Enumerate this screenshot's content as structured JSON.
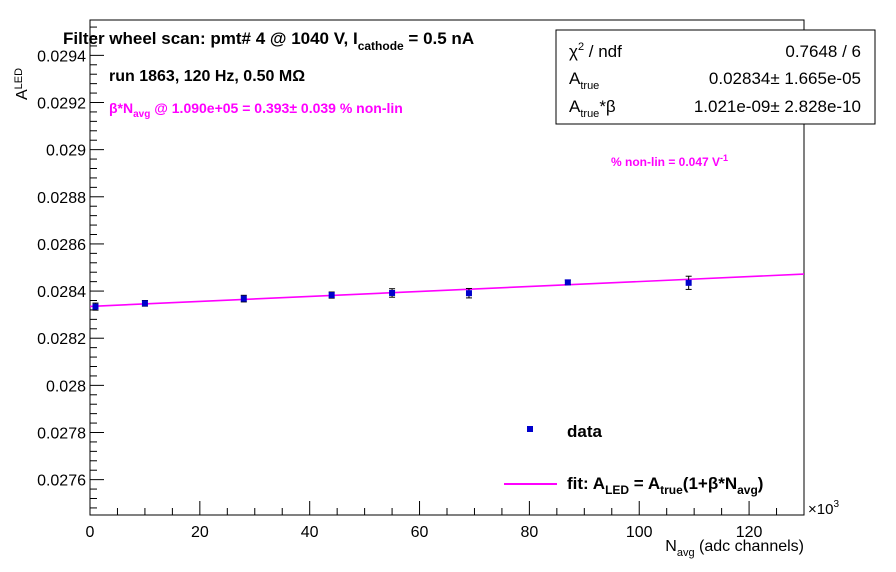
{
  "chart_data": {
    "type": "scatter",
    "title": {
      "prefix": "Filter wheel scan: pmt#   4 @  1040 V, I",
      "sub": "cathode",
      "suffix": " = 0.5 nA"
    },
    "xlabel": {
      "main": "N",
      "sub": "avg",
      "rest": " (adc channels)"
    },
    "ylabel": {
      "main": "A",
      "sub": "LED"
    },
    "x_multiplier": "×10",
    "x_multiplier_exp": "3",
    "xlim": [
      0,
      130
    ],
    "ylim": [
      0.02745,
      0.02955
    ],
    "x_ticks": [
      0,
      20,
      40,
      60,
      80,
      100,
      120
    ],
    "x_tick_labels": [
      "0",
      "20",
      "40",
      "60",
      "80",
      "100",
      "120"
    ],
    "y_ticks": [
      0.0276,
      0.0278,
      0.028,
      0.0282,
      0.0284,
      0.0286,
      0.0288,
      0.029,
      0.0292,
      0.0294
    ],
    "y_tick_labels": [
      "0.0276",
      "0.0278",
      "0.028",
      "0.0282",
      "0.0284",
      "0.0286",
      "0.0288",
      "0.029",
      "0.0292",
      "0.0294"
    ],
    "series": [
      {
        "name": "data",
        "points": [
          {
            "x": 1.0,
            "y": 0.028334,
            "err": 1.5e-05
          },
          {
            "x": 10.0,
            "y": 0.028348,
            "err": 1.2e-05
          },
          {
            "x": 28.0,
            "y": 0.028368,
            "err": 1.4e-05
          },
          {
            "x": 44.0,
            "y": 0.028383,
            "err": 1.3e-05
          },
          {
            "x": 55.0,
            "y": 0.028392,
            "err": 1.8e-05
          },
          {
            "x": 69.0,
            "y": 0.028391,
            "err": 2e-05
          },
          {
            "x": 87.0,
            "y": 0.028437,
            "err": 1e-05
          },
          {
            "x": 109.0,
            "y": 0.028435,
            "err": 2.8e-05
          }
        ]
      }
    ],
    "fit": {
      "label_parts": [
        "fit: A",
        "LED",
        " = A",
        "true",
        "(1+β*N",
        "avg",
        ")"
      ],
      "x_start": 0,
      "x_end": 130,
      "y_start": 0.028335,
      "y_end": 0.028472
    },
    "annotations": {
      "run": "run 1863, 120 Hz, 0.50 MΩ",
      "nonlin_parts": [
        "β*N",
        "avg",
        " @ 1.090e+05 = 0.393± 0.039 % non-lin"
      ],
      "pct_nonlin": "% non-lin = 0.047 V",
      "pct_nonlin_exp": "-1"
    },
    "stats_box": {
      "rows": [
        {
          "label": "χ",
          "label_sup": "2",
          "label_rest": " / ndf",
          "value": "0.7648 / 6"
        },
        {
          "label": "A",
          "label_sub": "true",
          "value": "0.02834± 1.665e-05"
        },
        {
          "label": "A",
          "label_sub": "true",
          "label_rest": "*β",
          "value": "1.021e-09± 2.828e-10"
        }
      ]
    },
    "legend": {
      "data_label": "data",
      "position": "bottom-right"
    },
    "colors": {
      "data": "#0000cc",
      "fit": "#ff00ff",
      "annotation": "#ff00ff"
    }
  }
}
